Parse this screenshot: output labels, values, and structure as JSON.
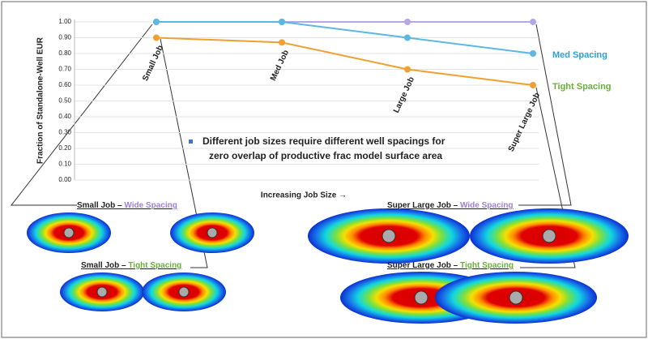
{
  "chart_data": {
    "type": "line",
    "y_label": "Fraction of Standalone-Well EUR",
    "x_label": "Increasing Job Size →",
    "categories": [
      "Small Job",
      "Med Job",
      "Large Job",
      "Super Large Job"
    ],
    "series": [
      {
        "color": "#b4a7e6",
        "values": [
          1.0,
          1.0,
          1.0,
          1.0
        ]
      },
      {
        "name": "Med Spacing",
        "color": "#5bb8e0",
        "legend_color": "#2e9fd6",
        "values": [
          1.0,
          1.0,
          0.9,
          0.8
        ]
      },
      {
        "name": "Tight Spacing",
        "color": "#f0a030",
        "legend_color": "#6aad3a",
        "values": [
          0.9,
          0.87,
          0.7,
          0.6
        ]
      }
    ],
    "ylim": [
      0,
      1
    ],
    "yticks": [
      {
        "value": 0,
        "label": "0.00"
      },
      {
        "value": 0.1,
        "label": "0.10"
      },
      {
        "value": 0.2,
        "label": "0.20"
      },
      {
        "value": 0.3,
        "label": "0.30"
      },
      {
        "value": 0.4,
        "label": "0.40"
      },
      {
        "value": 0.5,
        "label": "0.50"
      },
      {
        "value": 0.6,
        "label": "0.60"
      },
      {
        "value": 0.7,
        "label": "0.70"
      },
      {
        "value": 0.8,
        "label": "0.80"
      },
      {
        "value": 0.9,
        "label": "0.90"
      },
      {
        "value": 1,
        "label": "1.00"
      }
    ],
    "grid": true,
    "annotation": [
      "Different job sizes require different well spacings for",
      "zero overlap of productive frac model surface area"
    ]
  },
  "diagram": {
    "labels": [
      {
        "job": "Small Job – ",
        "spacing": "Wide Spacing",
        "color": "#9b7fd9"
      },
      {
        "job": "Small Job – ",
        "spacing": "Tight Spacing",
        "color": "#6aad3a"
      },
      {
        "job": "Super Large Job – ",
        "spacing": "Wide Spacing",
        "color": "#9b7fd9"
      },
      {
        "job": "Super Large Job – ",
        "spacing": "Tight Spacing",
        "color": "#6aad3a"
      }
    ]
  }
}
